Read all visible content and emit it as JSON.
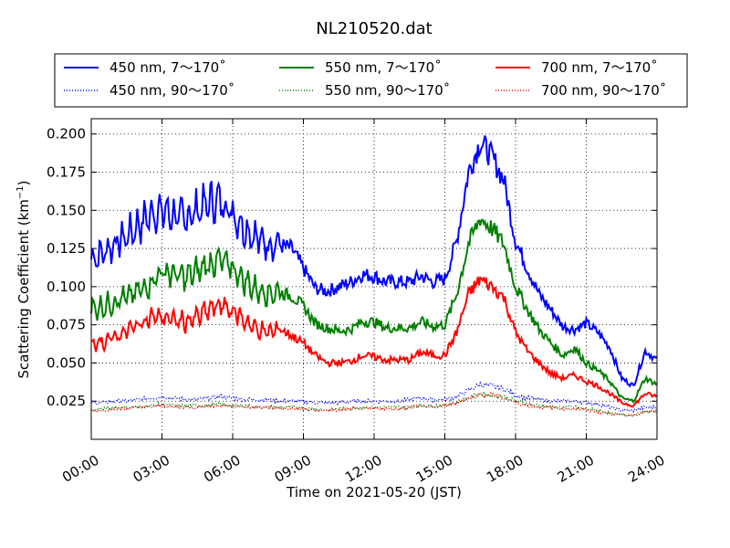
{
  "chart_data": {
    "type": "line",
    "title": "NL210520.dat",
    "xlabel": "Time on 2021-05-20 (JST)",
    "ylabel": "Scattering Coefficient (km",
    "ylabel_sup": "−1",
    "ylabel_close": ")",
    "xlim": [
      0,
      24
    ],
    "ylim": [
      0.0,
      0.21
    ],
    "x_ticks": [
      0,
      3,
      6,
      9,
      12,
      15,
      18,
      21,
      24
    ],
    "x_tick_labels": [
      "00:00",
      "03:00",
      "06:00",
      "09:00",
      "12:00",
      "15:00",
      "18:00",
      "21:00",
      "24:00"
    ],
    "y_ticks": [
      0.025,
      0.05,
      0.075,
      0.1,
      0.125,
      0.15,
      0.175,
      0.2
    ],
    "y_tick_labels": [
      "0.025",
      "0.050",
      "0.075",
      "0.100",
      "0.125",
      "0.150",
      "0.175",
      "0.200"
    ],
    "grid": true,
    "legend_position": "top",
    "x": [
      0,
      0.5,
      1,
      1.5,
      2,
      2.5,
      3,
      3.5,
      4,
      4.5,
      5,
      5.5,
      6,
      6.5,
      7,
      7.5,
      8,
      8.5,
      9,
      9.5,
      10,
      10.5,
      11,
      11.5,
      12,
      12.5,
      13,
      13.5,
      14,
      14.5,
      15,
      15.5,
      16,
      16.5,
      17,
      17.5,
      18,
      18.5,
      19,
      19.5,
      20,
      20.5,
      21,
      21.5,
      22,
      22.5,
      23,
      23.5,
      24
    ],
    "series": [
      {
        "name": "450 nm, 7～170˚",
        "color": "#0000ff",
        "style": "solid",
        "values": [
          0.118,
          0.122,
          0.128,
          0.133,
          0.14,
          0.147,
          0.15,
          0.146,
          0.145,
          0.15,
          0.155,
          0.156,
          0.148,
          0.138,
          0.132,
          0.128,
          0.127,
          0.125,
          0.112,
          0.099,
          0.097,
          0.1,
          0.103,
          0.108,
          0.107,
          0.103,
          0.103,
          0.103,
          0.107,
          0.103,
          0.105,
          0.13,
          0.175,
          0.195,
          0.185,
          0.17,
          0.13,
          0.112,
          0.095,
          0.085,
          0.074,
          0.072,
          0.076,
          0.07,
          0.06,
          0.04,
          0.035,
          0.058,
          0.052
        ]
      },
      {
        "name": "450 nm, 90～170˚",
        "color": "#0000ff",
        "style": "dotted",
        "values": [
          0.024,
          0.024,
          0.025,
          0.025,
          0.026,
          0.027,
          0.028,
          0.027,
          0.026,
          0.026,
          0.027,
          0.028,
          0.027,
          0.026,
          0.026,
          0.026,
          0.025,
          0.025,
          0.025,
          0.024,
          0.024,
          0.024,
          0.025,
          0.025,
          0.025,
          0.025,
          0.025,
          0.026,
          0.027,
          0.026,
          0.026,
          0.028,
          0.032,
          0.036,
          0.035,
          0.033,
          0.029,
          0.027,
          0.026,
          0.025,
          0.025,
          0.025,
          0.024,
          0.023,
          0.021,
          0.019,
          0.019,
          0.021,
          0.021
        ]
      },
      {
        "name": "550 nm, 7～170˚",
        "color": "#008000",
        "style": "solid",
        "values": [
          0.085,
          0.087,
          0.09,
          0.093,
          0.097,
          0.102,
          0.11,
          0.108,
          0.106,
          0.11,
          0.115,
          0.117,
          0.112,
          0.104,
          0.098,
          0.096,
          0.096,
          0.094,
          0.087,
          0.076,
          0.073,
          0.071,
          0.072,
          0.077,
          0.077,
          0.073,
          0.073,
          0.073,
          0.077,
          0.074,
          0.075,
          0.095,
          0.128,
          0.145,
          0.138,
          0.128,
          0.1,
          0.085,
          0.072,
          0.063,
          0.055,
          0.06,
          0.05,
          0.045,
          0.038,
          0.027,
          0.025,
          0.04,
          0.036
        ]
      },
      {
        "name": "550 nm, 90～170˚",
        "color": "#008000",
        "style": "dotted",
        "values": [
          0.019,
          0.02,
          0.021,
          0.021,
          0.021,
          0.022,
          0.023,
          0.022,
          0.022,
          0.022,
          0.022,
          0.023,
          0.022,
          0.022,
          0.021,
          0.021,
          0.021,
          0.021,
          0.02,
          0.02,
          0.019,
          0.02,
          0.02,
          0.021,
          0.021,
          0.021,
          0.021,
          0.021,
          0.022,
          0.022,
          0.022,
          0.024,
          0.027,
          0.03,
          0.029,
          0.028,
          0.025,
          0.023,
          0.022,
          0.021,
          0.021,
          0.021,
          0.02,
          0.019,
          0.017,
          0.016,
          0.016,
          0.018,
          0.018
        ]
      },
      {
        "name": "700 nm, 7～170˚",
        "color": "#ff0000",
        "style": "solid",
        "values": [
          0.062,
          0.064,
          0.067,
          0.071,
          0.075,
          0.08,
          0.08,
          0.078,
          0.077,
          0.08,
          0.085,
          0.088,
          0.084,
          0.078,
          0.072,
          0.07,
          0.072,
          0.068,
          0.063,
          0.055,
          0.05,
          0.05,
          0.051,
          0.055,
          0.054,
          0.052,
          0.052,
          0.052,
          0.057,
          0.055,
          0.055,
          0.07,
          0.095,
          0.105,
          0.1,
          0.093,
          0.07,
          0.058,
          0.05,
          0.043,
          0.04,
          0.042,
          0.038,
          0.035,
          0.03,
          0.024,
          0.022,
          0.03,
          0.028
        ]
      },
      {
        "name": "700 nm, 90～170˚",
        "color": "#ff0000",
        "style": "dotted",
        "values": [
          0.019,
          0.019,
          0.02,
          0.02,
          0.021,
          0.021,
          0.022,
          0.021,
          0.021,
          0.021,
          0.022,
          0.022,
          0.022,
          0.021,
          0.021,
          0.021,
          0.02,
          0.02,
          0.02,
          0.019,
          0.019,
          0.019,
          0.02,
          0.02,
          0.02,
          0.02,
          0.02,
          0.021,
          0.022,
          0.021,
          0.022,
          0.024,
          0.027,
          0.029,
          0.029,
          0.027,
          0.024,
          0.022,
          0.021,
          0.021,
          0.02,
          0.02,
          0.019,
          0.018,
          0.017,
          0.016,
          0.016,
          0.018,
          0.018
        ]
      }
    ]
  }
}
